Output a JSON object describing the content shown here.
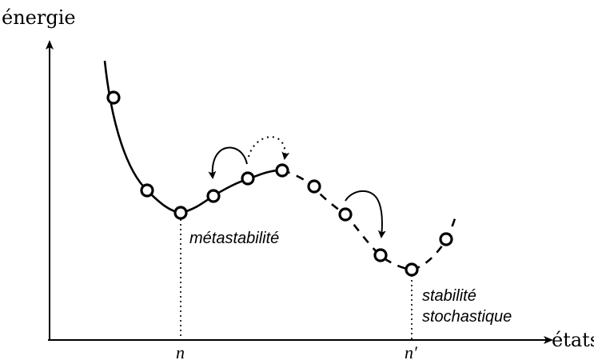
{
  "axes": {
    "y_label": "énergie",
    "x_label": "états"
  },
  "ticks": {
    "n": "n",
    "n_prime": "n′"
  },
  "annotations": {
    "metastability": "métastabilité",
    "stochastic_line1": "stabilité",
    "stochastic_line2": "stochastique"
  },
  "colors": {
    "ink": "#000000",
    "background": "#ffffff"
  }
}
